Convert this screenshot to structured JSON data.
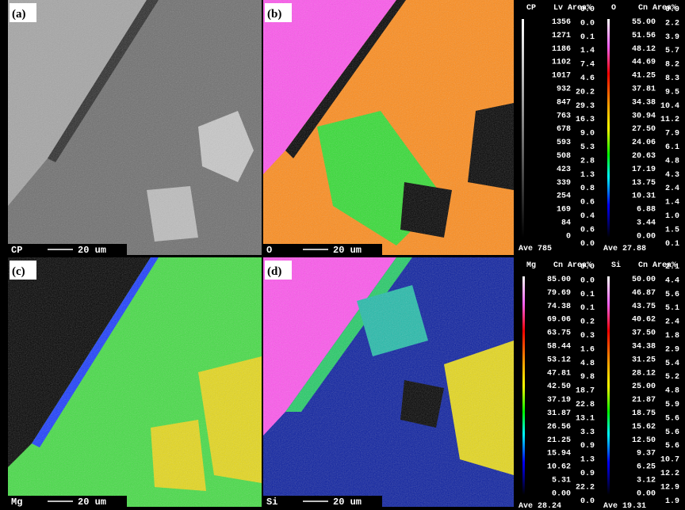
{
  "panels": [
    {
      "label": "(a)",
      "caption": "CP",
      "scale_bar": "20 um"
    },
    {
      "label": "(b)",
      "caption": "O",
      "scale_bar": "20 um"
    },
    {
      "label": "(c)",
      "caption": "Mg",
      "scale_bar": "20 um"
    },
    {
      "label": "(d)",
      "caption": "Si",
      "scale_bar": "20 um"
    }
  ],
  "scales": [
    {
      "element": "CP",
      "level_heading": "Lv",
      "area_heading": "Area%",
      "levels": [
        "1356",
        "1271",
        "1186",
        "1102",
        "1017",
        "932",
        "847",
        "763",
        "678",
        "593",
        "508",
        "423",
        "339",
        "254",
        "169",
        "84",
        "0"
      ],
      "areas": [
        "0.0",
        "0.0",
        "0.1",
        "1.4",
        "7.4",
        "4.6",
        "20.2",
        "29.3",
        "16.3",
        "9.0",
        "5.3",
        "2.8",
        "1.3",
        "0.8",
        "0.6",
        "0.4",
        "0.6",
        "0.0"
      ],
      "average": "Ave 785"
    },
    {
      "element": "O",
      "level_heading": "Cn",
      "area_heading": "Area%",
      "levels": [
        "55.00",
        "51.56",
        "48.12",
        "44.69",
        "41.25",
        "37.81",
        "34.38",
        "30.94",
        "27.50",
        "24.06",
        "20.63",
        "17.19",
        "13.75",
        "10.31",
        "6.88",
        "3.44",
        "0.00"
      ],
      "areas": [
        "0.9",
        "2.2",
        "3.9",
        "5.7",
        "8.2",
        "8.3",
        "9.5",
        "10.4",
        "11.2",
        "7.9",
        "6.1",
        "4.8",
        "4.3",
        "2.4",
        "1.4",
        "1.0",
        "1.5",
        "0.1"
      ],
      "average": "Ave 27.88"
    },
    {
      "element": "Mg",
      "level_heading": "Cn",
      "area_heading": "Area%",
      "levels": [
        "85.00",
        "79.69",
        "74.38",
        "69.06",
        "63.75",
        "58.44",
        "53.12",
        "47.81",
        "42.50",
        "37.19",
        "31.87",
        "26.56",
        "21.25",
        "15.94",
        "10.62",
        "5.31",
        "0.00"
      ],
      "areas": [
        "0.0",
        "0.0",
        "0.1",
        "0.1",
        "0.2",
        "0.3",
        "1.6",
        "4.8",
        "9.8",
        "18.7",
        "22.8",
        "13.1",
        "3.3",
        "0.9",
        "1.3",
        "0.9",
        "22.2",
        "0.0"
      ],
      "average": "Ave 28.24"
    },
    {
      "element": "Si",
      "level_heading": "Cn",
      "area_heading": "Area%",
      "levels": [
        "50.00",
        "46.87",
        "43.75",
        "40.62",
        "37.50",
        "34.38",
        "31.25",
        "28.12",
        "25.00",
        "21.87",
        "18.75",
        "15.62",
        "12.50",
        "9.37",
        "6.25",
        "3.12",
        "0.00"
      ],
      "areas": [
        "2.1",
        "4.4",
        "5.6",
        "5.1",
        "2.4",
        "1.8",
        "2.9",
        "5.4",
        "5.2",
        "4.8",
        "5.9",
        "5.6",
        "5.6",
        "5.6",
        "10.7",
        "12.2",
        "12.9",
        "1.9"
      ],
      "average": "Ave 19.31"
    }
  ]
}
